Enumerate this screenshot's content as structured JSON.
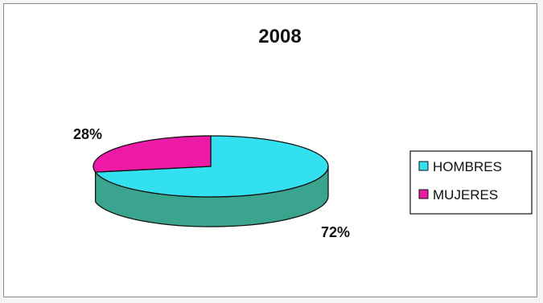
{
  "chart_data": {
    "type": "pie",
    "style": "3d",
    "title": "2008",
    "legend_position": "right",
    "slices": [
      {
        "label": "HOMBRES",
        "value": 72,
        "value_label": "72%",
        "color": "#33e0f0",
        "side_color": "#3aa48e"
      },
      {
        "label": "MUJERES",
        "value": 28,
        "value_label": "28%",
        "color": "#ec1aa6",
        "side_color": "#a01070"
      }
    ]
  }
}
